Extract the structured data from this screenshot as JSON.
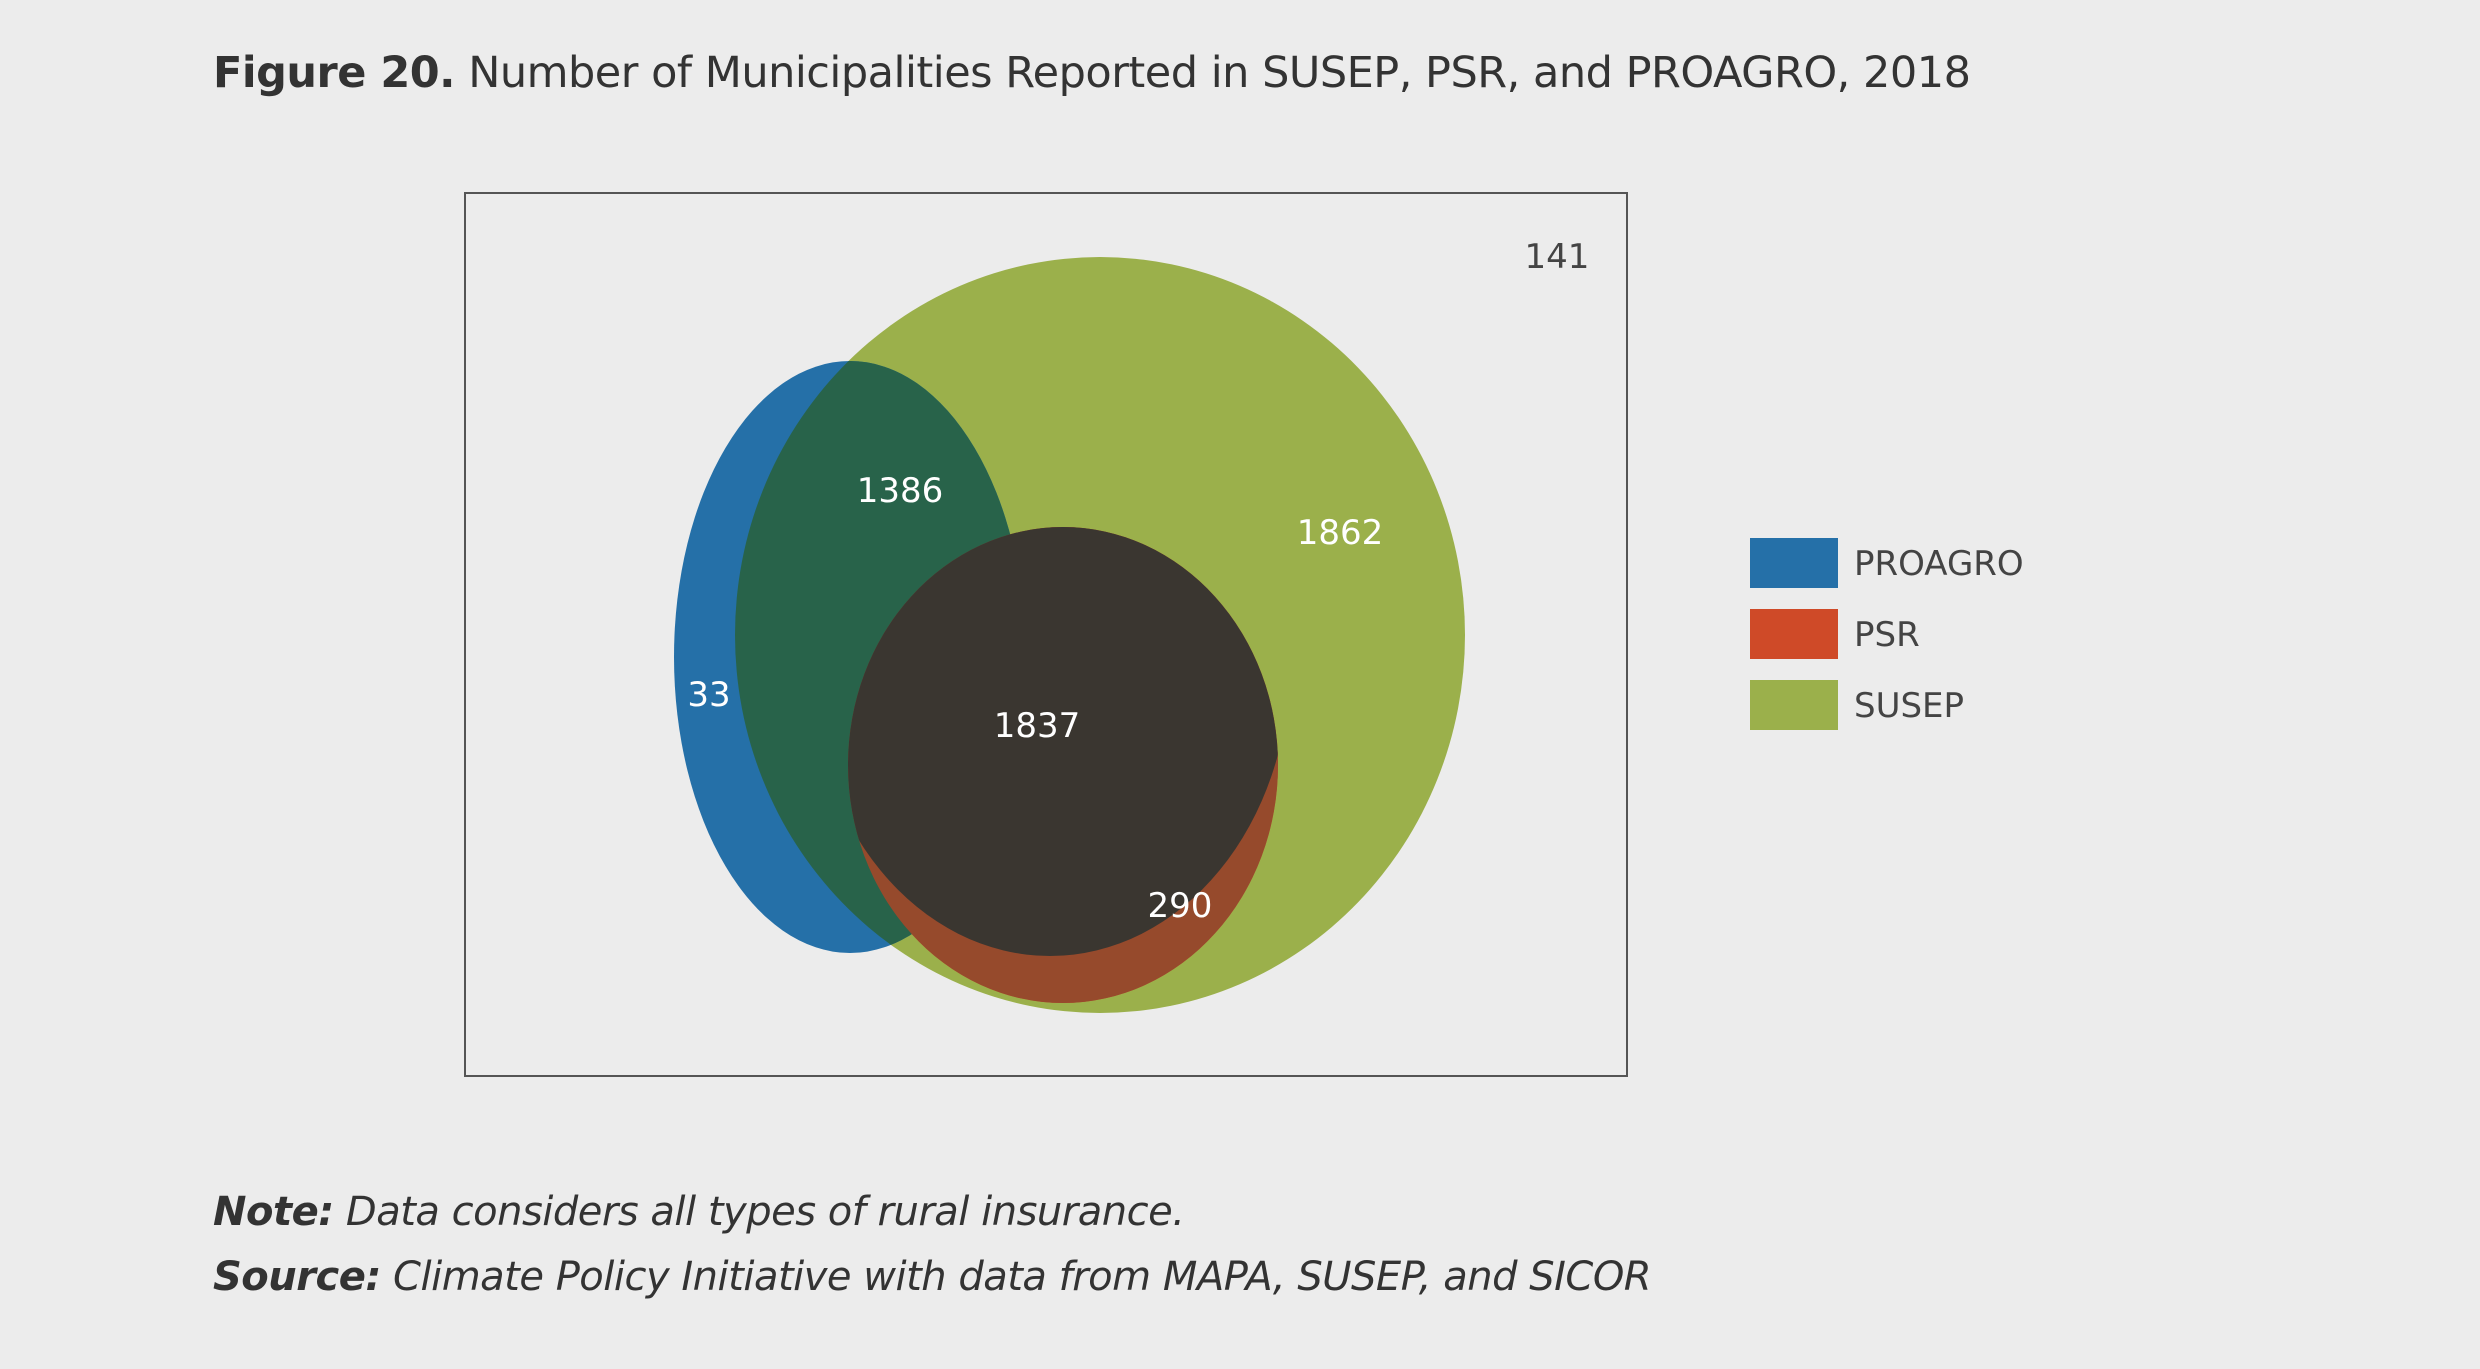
{
  "figure": {
    "label": "Figure 20.",
    "title": "Number of Municipalities Reported in SUSEP, PSR, and PROAGRO, 2018"
  },
  "chart_data": {
    "type": "venn",
    "sets": [
      {
        "name": "PROAGRO",
        "color": "#2570a8"
      },
      {
        "name": "PSR",
        "color": "#cf4a28"
      },
      {
        "name": "SUSEP",
        "color": "#9bb04b"
      }
    ],
    "overlap_colors": {
      "PROAGRO+SUSEP": "#28634a",
      "PROAGRO+PSR+SUSEP": "#3a3630",
      "PSR+SUSEP": "#964a2c"
    },
    "regions": [
      {
        "sets": [
          "PROAGRO"
        ],
        "value": 33
      },
      {
        "sets": [
          "PROAGRO",
          "SUSEP"
        ],
        "value": 1386
      },
      {
        "sets": [
          "SUSEP"
        ],
        "value": 1862
      },
      {
        "sets": [
          "PROAGRO",
          "PSR",
          "SUSEP"
        ],
        "value": 1837
      },
      {
        "sets": [
          "PSR",
          "SUSEP"
        ],
        "value": 290
      },
      {
        "sets": [],
        "value": 141
      }
    ],
    "legend": {
      "position": "right",
      "entries": [
        "PROAGRO",
        "PSR",
        "SUSEP"
      ]
    }
  },
  "notes": {
    "note_key": "Note:",
    "note_text": "Data considers all types of rural insurance.",
    "source_key": "Source:",
    "source_text": "Climate Policy Initiative with data from MAPA, SUSEP, and SICOR"
  }
}
